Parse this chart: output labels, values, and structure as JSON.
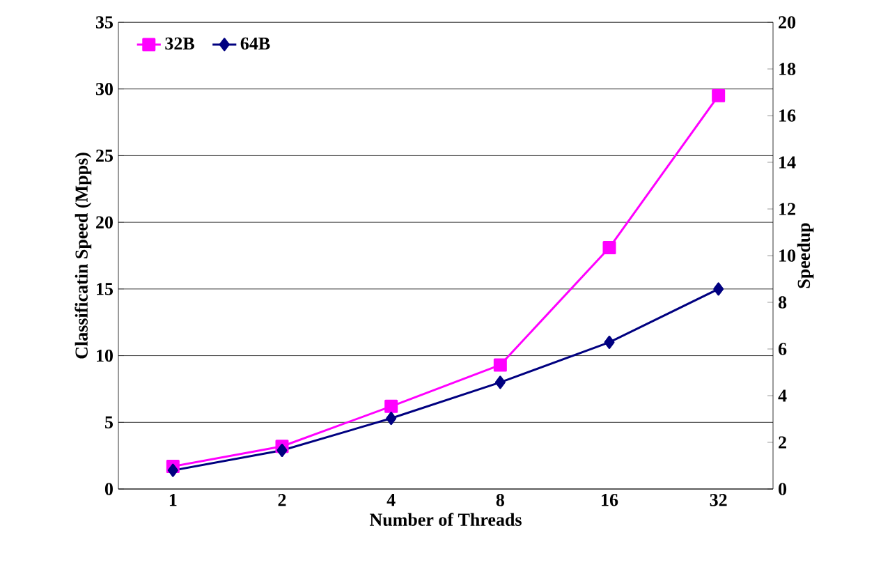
{
  "chart_data": {
    "type": "line",
    "xlabel": "Number of Threads",
    "ylabel": "Classificatin Speed (Mpps)",
    "y2label": "Speedup",
    "categories": [
      "1",
      "2",
      "4",
      "8",
      "16",
      "32"
    ],
    "series": [
      {
        "name": "32B",
        "color": "#ff00ff",
        "marker": "square",
        "values": [
          1.7,
          3.2,
          6.2,
          9.3,
          18.1,
          29.5
        ]
      },
      {
        "name": "64B",
        "color": "#000080",
        "marker": "diamond",
        "values": [
          1.4,
          2.9,
          5.3,
          8.0,
          11.0,
          15.0
        ]
      }
    ],
    "ylim": [
      0,
      35
    ],
    "yticks": [
      0,
      5,
      10,
      15,
      20,
      25,
      30,
      35
    ],
    "y2lim": [
      0,
      20
    ],
    "y2ticks": [
      0,
      2,
      4,
      6,
      8,
      10,
      12,
      14,
      16,
      18,
      20
    ],
    "grid": "y",
    "legend": "top left"
  }
}
